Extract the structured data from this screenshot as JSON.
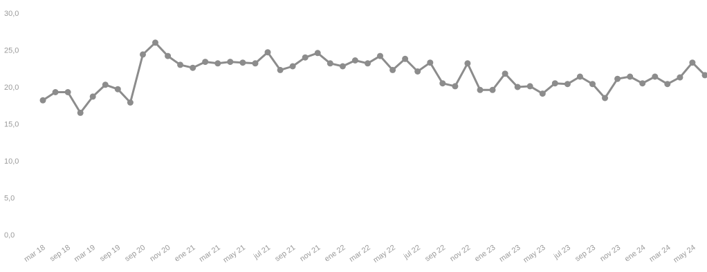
{
  "chart_data": {
    "type": "line",
    "title": "",
    "xlabel": "",
    "ylabel": "",
    "ylim": [
      0,
      30
    ],
    "y_ticks": [
      "0,0",
      "5,0",
      "10,0",
      "15,0",
      "20,0",
      "25,0",
      "30,0"
    ],
    "grid": false,
    "legend": "none",
    "x_tick_labels": [
      "mar 18",
      "sep 18",
      "mar 19",
      "sep 19",
      "sep 20",
      "nov 20",
      "ene 21",
      "mar 21",
      "may 21",
      "jul 21",
      "sep 21",
      "nov 21",
      "ene 22",
      "mar 22",
      "may 22",
      "jul 22",
      "sep 22",
      "nov 22",
      "ene 23",
      "mar 23",
      "may 23",
      "jul 23",
      "sep 23",
      "nov 23",
      "ene 24",
      "mar 24",
      "may 24"
    ],
    "series": [
      {
        "color": "#8c8c8c",
        "values": [
          18.2,
          19.3,
          19.3,
          16.5,
          18.7,
          20.3,
          19.7,
          17.9,
          24.4,
          26.0,
          24.2,
          23.0,
          22.6,
          23.4,
          23.2,
          23.4,
          23.3,
          23.2,
          24.7,
          22.3,
          22.8,
          24.0,
          24.6,
          23.2,
          22.8,
          23.6,
          23.2,
          24.2,
          22.3,
          23.8,
          22.1,
          23.3,
          20.5,
          20.1,
          23.2,
          19.6,
          19.6,
          21.8,
          20.0,
          20.1,
          19.1,
          20.5,
          20.4,
          21.4,
          20.4,
          18.5,
          21.1,
          21.4,
          20.5,
          21.4,
          20.4,
          21.3,
          23.3,
          21.6
        ]
      }
    ]
  }
}
